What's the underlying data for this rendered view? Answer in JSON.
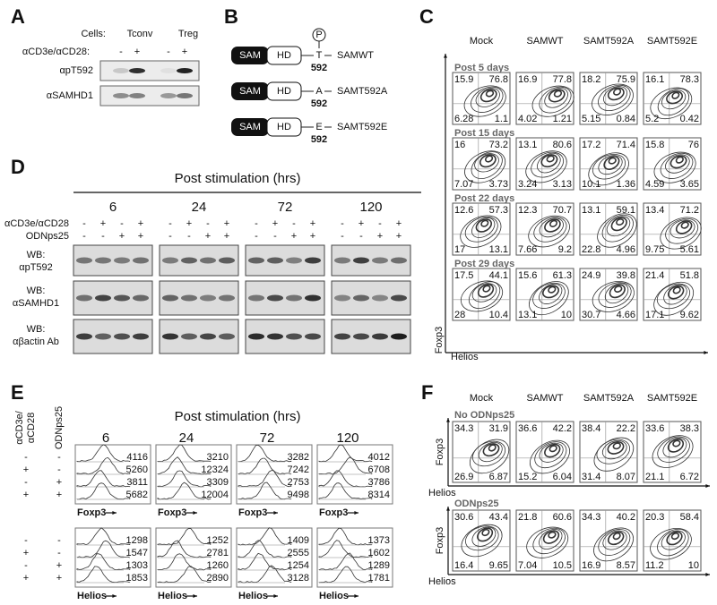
{
  "panel_a": {
    "label": "A",
    "cells_label": "Cells:",
    "cells": [
      "Tconv",
      "Treg"
    ],
    "stim_label": "αCD3e/αCD28:",
    "signs": [
      "-",
      "+",
      "-",
      "+"
    ],
    "blots": [
      "αpT592",
      "αSAMHD1"
    ]
  },
  "panel_b": {
    "label": "B",
    "constructs": [
      {
        "domain1": "SAM",
        "domain2": "HD",
        "residue": "T",
        "position": "592",
        "name": "SAMWT",
        "phospho": "P"
      },
      {
        "domain1": "SAM",
        "domain2": "HD",
        "residue": "A",
        "position": "592",
        "name": "SAMT592A"
      },
      {
        "domain1": "SAM",
        "domain2": "HD",
        "residue": "E",
        "position": "592",
        "name": "SAMT592E"
      }
    ]
  },
  "panel_c": {
    "label": "C",
    "columns": [
      "Mock",
      "SAMWT",
      "SAMT592A",
      "SAMT592E"
    ],
    "y_label": "Foxp3",
    "x_label": "Helios",
    "rows": [
      {
        "title": "Post 5 days",
        "quadrants": [
          [
            "15.9",
            "76.8",
            "6.28",
            "1.1"
          ],
          [
            "16.9",
            "77.8",
            "4.02",
            "1.21"
          ],
          [
            "18.2",
            "75.9",
            "5.15",
            "0.84"
          ],
          [
            "16.1",
            "78.3",
            "5.2",
            "0.42"
          ]
        ]
      },
      {
        "title": "Post 15 days",
        "quadrants": [
          [
            "16",
            "73.2",
            "7.07",
            "3.73"
          ],
          [
            "13.1",
            "80.6",
            "3.24",
            "3.13"
          ],
          [
            "17.2",
            "71.4",
            "10.1",
            "1.36"
          ],
          [
            "15.8",
            "76",
            "4.59",
            "3.65"
          ]
        ]
      },
      {
        "title": "Post 22 days",
        "quadrants": [
          [
            "12.6",
            "57.3",
            "17",
            "13.1"
          ],
          [
            "12.3",
            "70.7",
            "7.66",
            "9.2"
          ],
          [
            "13.1",
            "59.1",
            "22.8",
            "4.96"
          ],
          [
            "13.4",
            "71.2",
            "9.75",
            "5.61"
          ]
        ]
      },
      {
        "title": "Post 29 days",
        "quadrants": [
          [
            "17.5",
            "44.1",
            "28",
            "10.4"
          ],
          [
            "15.6",
            "61.3",
            "13.1",
            "10"
          ],
          [
            "24.9",
            "39.8",
            "30.7",
            "4.66"
          ],
          [
            "21.4",
            "51.8",
            "17.1",
            "9.62"
          ]
        ]
      }
    ]
  },
  "panel_d": {
    "label": "D",
    "title": "Post stimulation (hrs)",
    "row_labels": [
      "αCD3e/αCD28",
      "ODNps25"
    ],
    "groups": [
      {
        "time": "6",
        "stim": [
          "-",
          "+",
          "-",
          "+"
        ],
        "odn": [
          "-",
          "-",
          "+",
          "+"
        ]
      },
      {
        "time": "24",
        "stim": [
          "-",
          "+",
          "-",
          "+"
        ],
        "odn": [
          "-",
          "-",
          "+",
          "+"
        ]
      },
      {
        "time": "72",
        "stim": [
          "-",
          "+",
          "-",
          "+"
        ],
        "odn": [
          "-",
          "-",
          "+",
          "+"
        ]
      },
      {
        "time": "120",
        "stim": [
          "-",
          "+",
          "-",
          "+"
        ],
        "odn": [
          "-",
          "-",
          "+",
          "+"
        ]
      }
    ],
    "blots": [
      {
        "prefix": "WB:",
        "target": "αpT592"
      },
      {
        "prefix": "WB:",
        "target": "αSAMHD1"
      },
      {
        "prefix": "WB:",
        "target": "αβactin Ab"
      }
    ]
  },
  "panel_e": {
    "label": "E",
    "title": "Post stimulation (hrs)",
    "times": [
      "6",
      "24",
      "72",
      "120"
    ],
    "side_labels": [
      "αCD3e/",
      "αCD28",
      "ODNps25"
    ],
    "blocks": [
      {
        "marker": "Foxp3",
        "signs": [
          [
            "-",
            "-"
          ],
          [
            "+",
            "-"
          ],
          [
            "-",
            "+"
          ],
          [
            "+",
            "+"
          ]
        ],
        "values": [
          [
            "4116",
            "5260",
            "3811",
            "5682"
          ],
          [
            "3210",
            "12324",
            "3309",
            "12004"
          ],
          [
            "3282",
            "7242",
            "2753",
            "9498"
          ],
          [
            "4012",
            "6708",
            "3786",
            "8314"
          ]
        ]
      },
      {
        "marker": "Helios",
        "signs": [
          [
            "-",
            "-"
          ],
          [
            "+",
            "-"
          ],
          [
            "-",
            "+"
          ],
          [
            "+",
            "+"
          ]
        ],
        "values": [
          [
            "1298",
            "1547",
            "1303",
            "1853"
          ],
          [
            "1252",
            "2781",
            "1260",
            "2890"
          ],
          [
            "1409",
            "2555",
            "1254",
            "3128"
          ],
          [
            "1373",
            "1602",
            "1289",
            "1781"
          ]
        ]
      }
    ]
  },
  "panel_f": {
    "label": "F",
    "columns": [
      "Mock",
      "SAMWT",
      "SAMT592A",
      "SAMT592E"
    ],
    "y_label": "Foxp3",
    "x_label": "Helios",
    "rows": [
      {
        "title": "No ODNps25",
        "quadrants": [
          [
            "34.3",
            "31.9",
            "26.9",
            "6.87"
          ],
          [
            "36.6",
            "42.2",
            "15.2",
            "6.04"
          ],
          [
            "38.4",
            "22.2",
            "31.4",
            "8.07"
          ],
          [
            "33.6",
            "38.3",
            "21.1",
            "6.72"
          ]
        ]
      },
      {
        "title": "ODNps25",
        "quadrants": [
          [
            "30.6",
            "43.4",
            "16.4",
            "9.65"
          ],
          [
            "21.8",
            "60.6",
            "7.04",
            "10.5"
          ],
          [
            "34.3",
            "40.2",
            "16.9",
            "8.57"
          ],
          [
            "20.3",
            "58.4",
            "11.2",
            "10"
          ]
        ]
      }
    ]
  }
}
